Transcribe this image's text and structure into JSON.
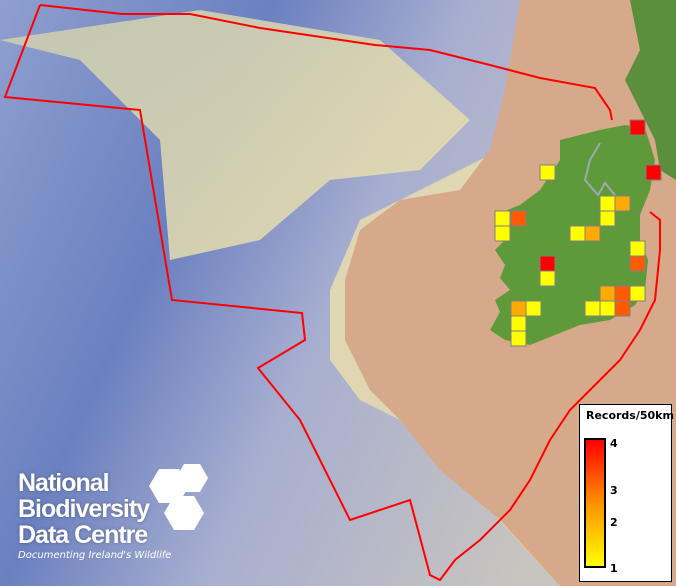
{
  "map": {
    "boundary_color": "#ff0000",
    "land_color": "#5f9a3a",
    "sea_color_deep": "#6f84c0",
    "sea_color_shallow": "#e4dcb0",
    "shelf_color": "#d7a88a"
  },
  "legend": {
    "title": "Records/50km",
    "ticks": [
      "4",
      "3",
      "2",
      "1"
    ],
    "min": 1,
    "max": 4,
    "color_min": "#ffff00",
    "color_max": "#ff0000"
  },
  "records": {
    "cell_size_km": 50,
    "values": [
      4,
      4,
      1,
      1,
      2,
      1,
      1,
      3,
      1,
      1,
      2,
      1,
      3,
      4,
      1,
      2,
      3,
      1,
      2,
      1,
      1,
      1,
      3,
      1,
      1
    ]
  },
  "logo": {
    "lines": [
      "National",
      "Biodiversity",
      "Data Centre"
    ],
    "tagline": "Documenting Ireland's Wildlife"
  }
}
